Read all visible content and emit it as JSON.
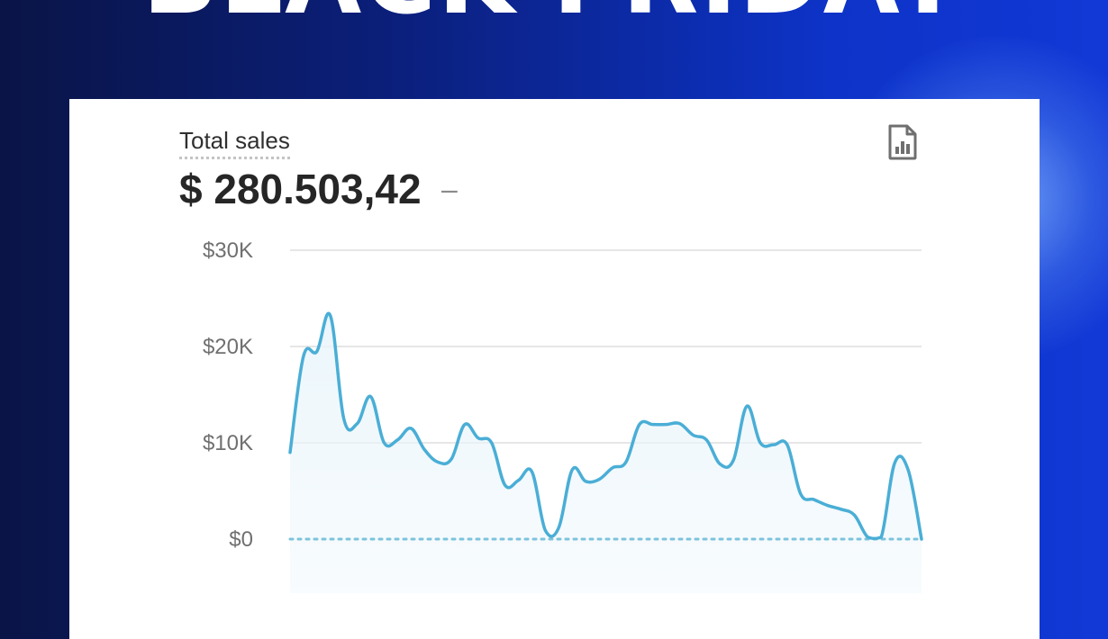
{
  "banner": {
    "text": "BLACK FRIDAY"
  },
  "metric": {
    "label": "Total sales",
    "value": "$ 280.503,42",
    "change": "–"
  },
  "icons": {
    "report": "report-chart-icon"
  },
  "colors": {
    "background_dark": "#0a1446",
    "background_blue": "#1238d6",
    "line": "#4aaed6",
    "fill": "#eaf5fb",
    "grid": "#e6e6e6",
    "baseline_dots": "#7cc3dc"
  },
  "chart_data": {
    "type": "area",
    "y_ticks": [
      {
        "value": 30000,
        "label": "$30K"
      },
      {
        "value": 20000,
        "label": "$20K"
      },
      {
        "value": 10000,
        "label": "$10K"
      },
      {
        "value": 0,
        "label": "$0"
      }
    ],
    "ylim": [
      0,
      30000
    ],
    "grid": true,
    "comparison_series_dotted_at_zero": true,
    "values": [
      9000,
      19000,
      19500,
      23200,
      12500,
      12000,
      14800,
      10000,
      10300,
      11500,
      9300,
      8000,
      8300,
      11900,
      10500,
      10000,
      5600,
      6100,
      7000,
      900,
      1200,
      7200,
      6000,
      6200,
      7400,
      8000,
      11900,
      11900,
      11900,
      12000,
      10800,
      10300,
      7800,
      8200,
      13800,
      10000,
      9800,
      9800,
      4700,
      4100,
      3500,
      3100,
      2500,
      200,
      200,
      7900,
      7200,
      0
    ]
  }
}
